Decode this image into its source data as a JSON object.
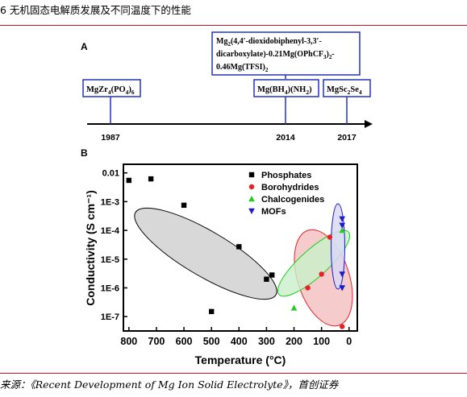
{
  "page": {
    "title": "6 无机固态电解质发展及不同温度下的性能",
    "source": "来源：《Recent Development of Mg Ion Solid Electrolyte》，首创证券"
  },
  "colors": {
    "accent_rule": "#c8102e",
    "timeline_box": "#2233bb",
    "phosphates": "#000000",
    "borohydrides": "#e8202a",
    "chalcogenides": "#22cc22",
    "mofs": "#1a1acc",
    "ellipse_phosphates_fill": "#d8d8d8",
    "ellipse_borohydrides_fill": "#f5c2c2",
    "ellipse_chalcogenides_fill": "#c9f0c9",
    "ellipse_mofs_fill": "#d9d9f5"
  },
  "panel_a": {
    "label": "A",
    "ticks": [
      "1987",
      "2014",
      "2017"
    ],
    "boxes": {
      "mgzr": [
        "MgZr",
        "4",
        "(PO",
        "4",
        ")",
        "6"
      ],
      "mgbh": [
        "Mg(BH",
        "4",
        ")(NH",
        "2",
        ")"
      ],
      "mgsc": [
        "MgSc",
        "2",
        "Se",
        "4"
      ],
      "complex_line1": [
        "Mg",
        "2",
        "(4,4′-dioxidobiphenyl-3,3′-"
      ],
      "complex_line2": [
        "dicarboxylate)-0.21Mg(OPhCF",
        "3",
        ")",
        "2",
        "-"
      ],
      "complex_line3": [
        "0.46Mg(TFSI)",
        "2"
      ]
    }
  },
  "chart_data": {
    "type": "scatter",
    "panel_label": "B",
    "xlabel": "Temperature (°C)",
    "ylabel": "Conductivity (S cm⁻¹)",
    "xlim": [
      820,
      -30
    ],
    "ylim_log10": [
      -7.5,
      -1.7
    ],
    "log_y": true,
    "x_ticks": [
      800,
      700,
      600,
      500,
      400,
      300,
      200,
      100,
      0
    ],
    "y_ticks": [
      "0.01",
      "1E-3",
      "1E-4",
      "1E-5",
      "1E-6",
      "1E-7"
    ],
    "legend_position": "top-right",
    "series": [
      {
        "name": "Phosphates",
        "marker": "square",
        "points": [
          [
            800,
            0.0055
          ],
          [
            720,
            0.0062
          ],
          [
            600,
            0.00075
          ],
          [
            400,
            2.7e-05
          ],
          [
            300,
            2e-06
          ],
          [
            280,
            2.8e-06
          ],
          [
            500,
            1.5e-07
          ]
        ]
      },
      {
        "name": "Borohydrides",
        "marker": "circle",
        "points": [
          [
            150,
            1e-06
          ],
          [
            100,
            3e-06
          ],
          [
            70,
            5.8e-05
          ],
          [
            25,
            4.5e-08
          ]
        ]
      },
      {
        "name": "Chalcogenides",
        "marker": "triangle-up",
        "points": [
          [
            200,
            2e-07
          ],
          [
            25,
            0.0001
          ]
        ]
      },
      {
        "name": "MOFs",
        "marker": "triangle-down",
        "points": [
          [
            25,
            0.00025
          ],
          [
            25,
            0.00015
          ],
          [
            25,
            3e-06
          ],
          [
            25,
            1e-06
          ]
        ]
      }
    ]
  }
}
